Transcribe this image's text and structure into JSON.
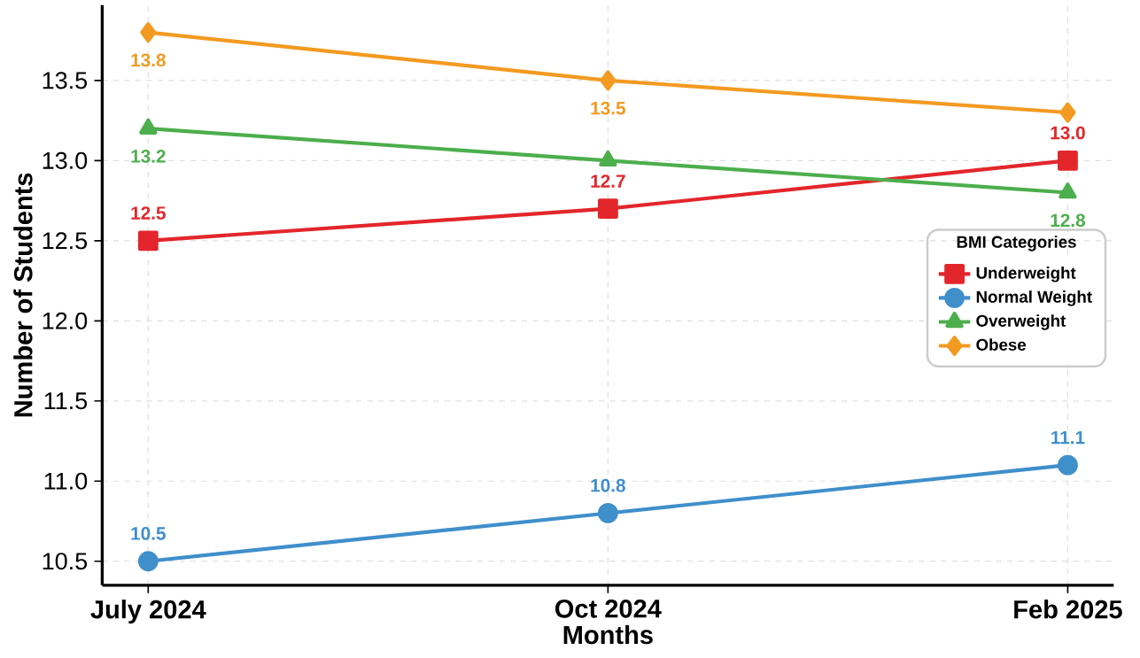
{
  "chart_data": {
    "type": "line",
    "xlabel": "Months",
    "ylabel": "Number of Students",
    "legend_title": "BMI Categories",
    "categories": [
      "July 2024",
      "Oct 2024",
      "Feb 2025"
    ],
    "series": [
      {
        "name": "Underweight",
        "color": "#e3262b",
        "marker": "square",
        "values": [
          12.5,
          12.7,
          13.0
        ],
        "value_labels": [
          "12.5",
          "12.7",
          "13.0"
        ]
      },
      {
        "name": "Normal Weight",
        "color": "#3f8fcb",
        "marker": "circle",
        "values": [
          10.5,
          10.8,
          11.1
        ],
        "value_labels": [
          "10.5",
          "10.8",
          "11.1"
        ]
      },
      {
        "name": "Overweight",
        "color": "#4cae4c",
        "marker": "triangle",
        "values": [
          13.2,
          13.0,
          12.8
        ],
        "value_labels": [
          "13.2",
          null,
          "12.8"
        ]
      },
      {
        "name": "Obese",
        "color": "#f39a21",
        "marker": "diamond",
        "values": [
          13.8,
          13.5,
          13.3
        ],
        "value_labels": [
          "13.8",
          "13.5",
          null
        ]
      }
    ],
    "ylim": [
      10.35,
      13.97
    ],
    "yticks": [
      10.5,
      {
        "value": 11,
        "label": "11.0"
      },
      11.5,
      {
        "value": 12,
        "label": "12.0"
      },
      12.5,
      {
        "value": 13,
        "label": "13.0"
      },
      13.5
    ],
    "grid": true,
    "legend": "right",
    "line_style": "solid"
  }
}
